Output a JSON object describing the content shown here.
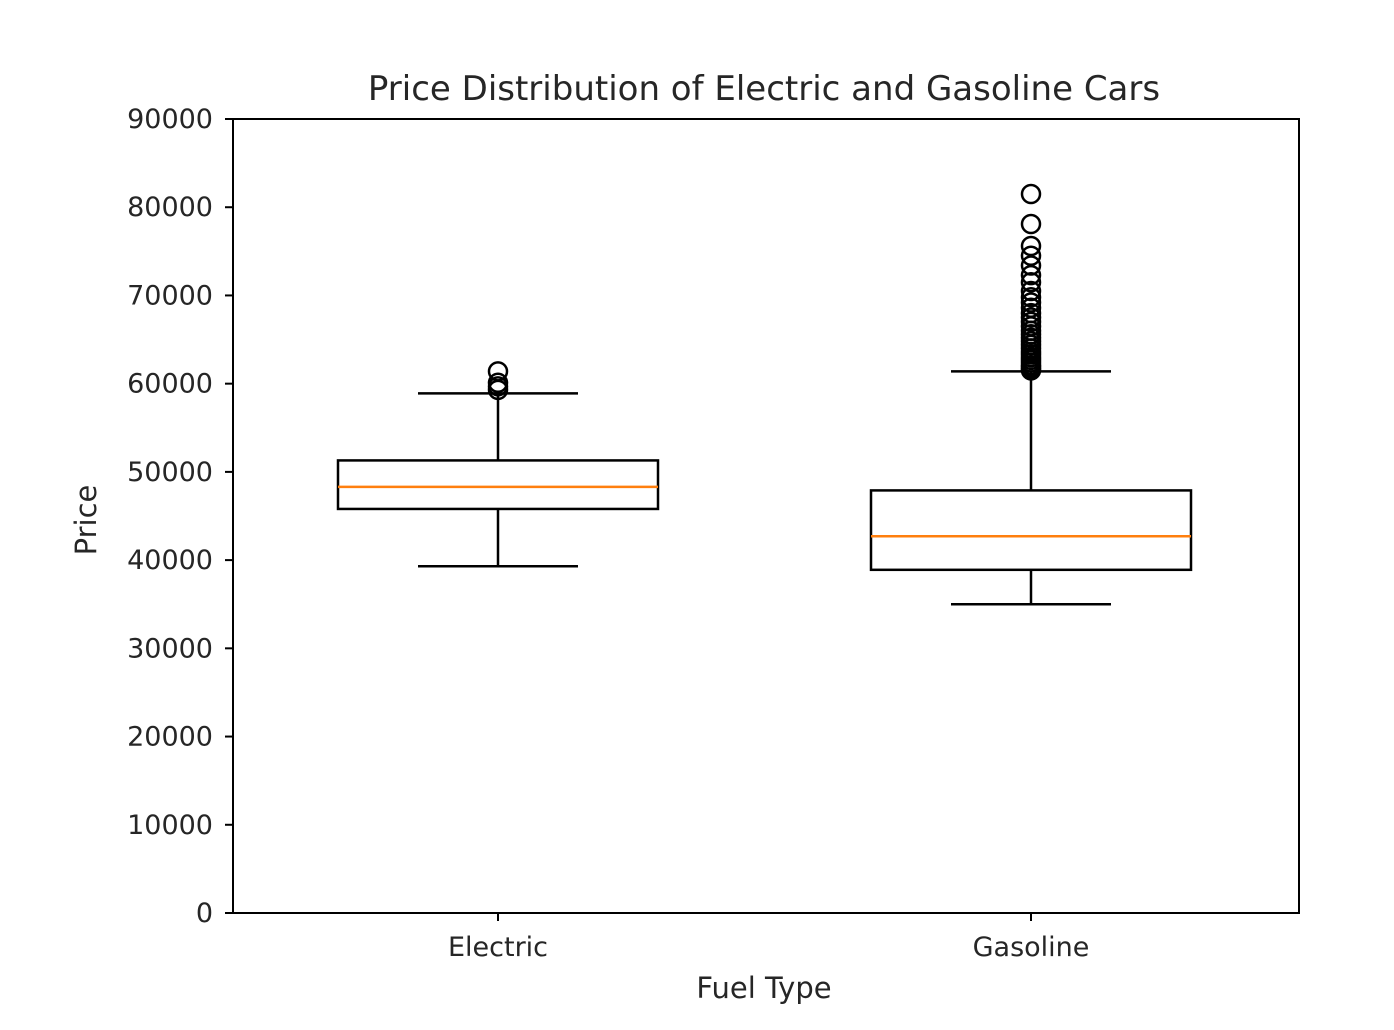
{
  "chart_data": {
    "type": "box",
    "title": "Price Distribution of Electric and Gasoline Cars",
    "xlabel": "Fuel Type",
    "ylabel": "Price",
    "ylim": [
      0,
      90000
    ],
    "yticks": [
      0,
      10000,
      20000,
      30000,
      40000,
      50000,
      60000,
      70000,
      80000,
      90000
    ],
    "ytick_labels": [
      "0",
      "10000",
      "20000",
      "30000",
      "40000",
      "50000",
      "60000",
      "70000",
      "80000",
      "90000"
    ],
    "categories": [
      "Electric",
      "Gasoline"
    ],
    "boxes": [
      {
        "category": "Electric",
        "whisker_low": 39300,
        "q1": 45800,
        "median": 48300,
        "q3": 51300,
        "whisker_high": 58900,
        "outliers": [
          59300,
          59700,
          60100,
          61400
        ]
      },
      {
        "category": "Gasoline",
        "whisker_low": 35000,
        "q1": 38900,
        "median": 42700,
        "q3": 47900,
        "whisker_high": 61400,
        "outliers": [
          61500,
          61700,
          61900,
          62100,
          62400,
          62700,
          63000,
          63300,
          63600,
          64000,
          64400,
          64800,
          65200,
          65600,
          66000,
          66500,
          67000,
          67500,
          68000,
          68600,
          69200,
          69800,
          70500,
          71500,
          72300,
          73400,
          74500,
          75600,
          78100,
          81500
        ]
      }
    ],
    "colors": {
      "box": "#000000",
      "median": "#ff7f0e",
      "outlier": "#000000"
    },
    "grid": false
  }
}
